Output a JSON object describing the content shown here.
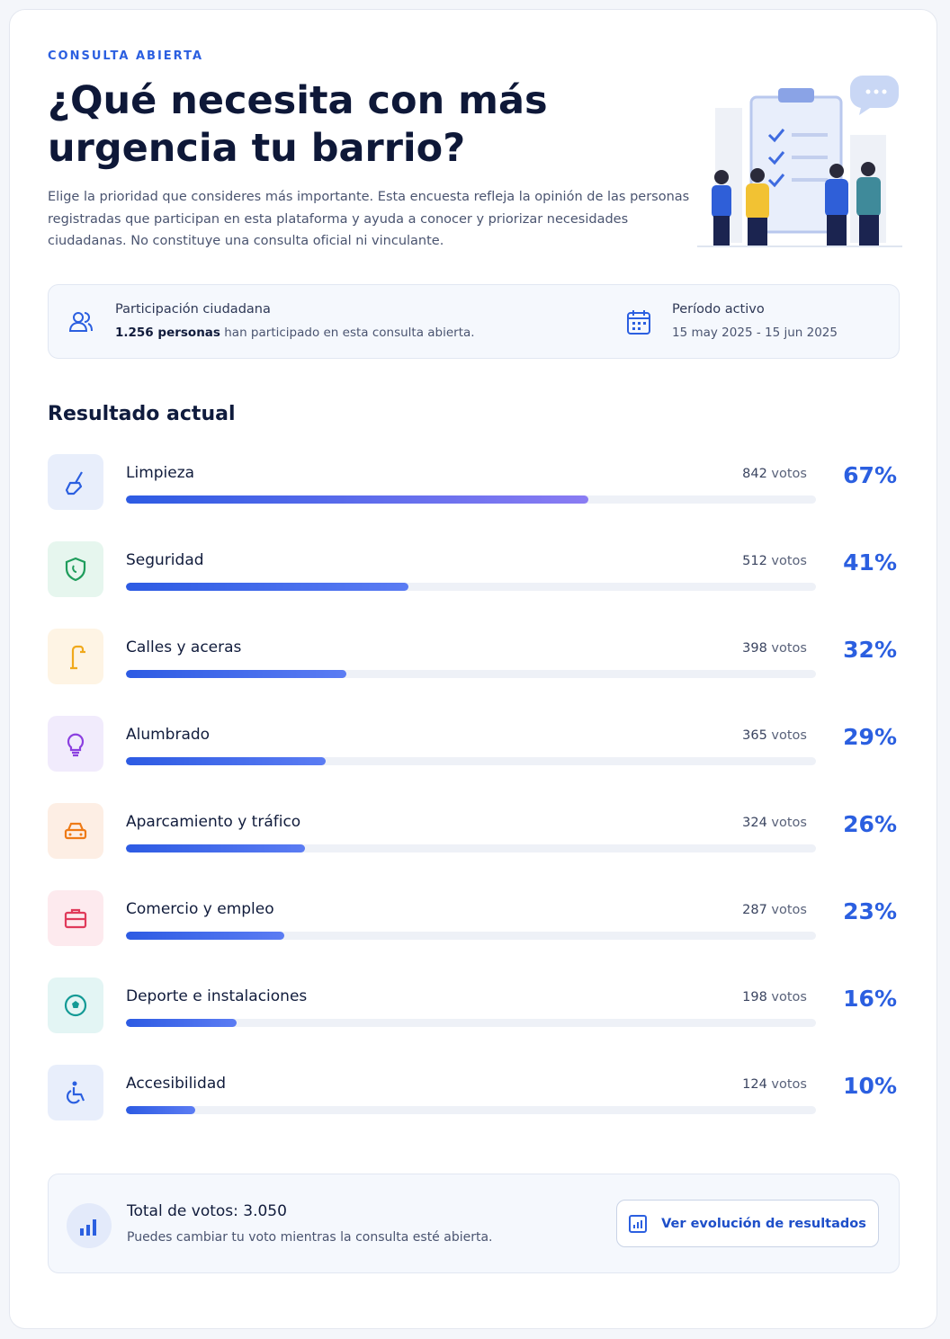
{
  "header": {
    "eyebrow": "CONSULTA ABIERTA",
    "title": "¿Qué necesita con más urgencia tu barrio?",
    "description": "Elige la prioridad que consideres más importante. Esta encuesta refleja la opinión de las personas registradas que participan en esta plataforma y ayuda a conocer y priorizar necesidades ciudadanas. No constituye una consulta oficial ni vinculante."
  },
  "info": {
    "participation_title": "Participación ciudadana",
    "participation_count": "1.256 personas",
    "participation_text": "han participado en esta consulta abierta.",
    "period_title": "Período activo",
    "period_dates": "15 may 2025 - 15 jun 2025"
  },
  "results": {
    "title": "Resultado actual",
    "votes_unit": "votos",
    "items": [
      {
        "label": "Limpieza",
        "votes": 842,
        "percent": {
          "value": 67,
          "label": "67%"
        }
      },
      {
        "label": "Seguridad",
        "votes": 512,
        "percent": {
          "value": 41,
          "label": "41%"
        }
      },
      {
        "label": "Calles y aceras",
        "votes": 398,
        "percent": {
          "value": 32,
          "label": "32%"
        }
      },
      {
        "label": "Alumbrado",
        "votes": 365,
        "percent": {
          "value": 29,
          "label": "29%"
        }
      },
      {
        "label": "Aparcamiento y tráfico",
        "votes": 324,
        "percent": {
          "value": 26,
          "label": "26%"
        }
      },
      {
        "label": "Comercio y empleo",
        "votes": 287,
        "percent": {
          "value": 23,
          "label": "23%"
        }
      },
      {
        "label": "Deporte e instalaciones",
        "votes": 198,
        "percent": {
          "value": 16,
          "label": "16%"
        }
      },
      {
        "label": "Accesibilidad",
        "votes": 124,
        "percent": {
          "value": 10,
          "label": "10%"
        }
      }
    ]
  },
  "footer": {
    "total": "Total de votos: 3.050",
    "note": "Puedes cambiar tu voto mientras la consulta esté abierta.",
    "button": "Ver evolución de resultados"
  }
}
